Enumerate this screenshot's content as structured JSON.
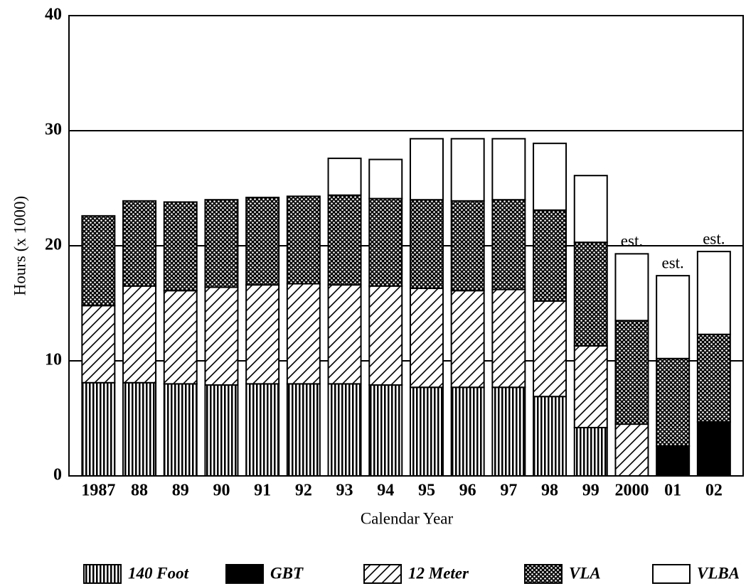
{
  "chart_data": {
    "type": "stacked-bar",
    "ylabel": "Hours (x 1000)",
    "xlabel": "Calendar Year",
    "categories": [
      "1987",
      "88",
      "89",
      "90",
      "91",
      "92",
      "93",
      "94",
      "95",
      "96",
      "97",
      "98",
      "99",
      "2000",
      "01",
      "02"
    ],
    "series": [
      {
        "name": "140 Foot",
        "color": "#000",
        "pattern": "vertical",
        "values": [
          8.1,
          8.1,
          8.0,
          7.9,
          8.0,
          8.0,
          8.0,
          7.9,
          7.7,
          7.7,
          7.7,
          6.9,
          4.2,
          0,
          0,
          0
        ]
      },
      {
        "name": "GBT",
        "color": "#000",
        "pattern": "solid",
        "values": [
          0,
          0,
          0,
          0,
          0,
          0,
          0,
          0,
          0,
          0,
          0,
          0,
          0,
          0,
          2.6,
          4.7
        ]
      },
      {
        "name": "12 Meter",
        "color": "#000",
        "pattern": "diagonal",
        "values": [
          6.7,
          8.4,
          8.1,
          8.5,
          8.6,
          8.7,
          8.6,
          8.6,
          8.6,
          8.4,
          8.5,
          8.3,
          7.1,
          4.5,
          0,
          0
        ]
      },
      {
        "name": "VLA",
        "color": "#000",
        "pattern": "dots",
        "values": [
          7.8,
          7.4,
          7.7,
          7.6,
          7.6,
          7.6,
          7.8,
          7.6,
          7.7,
          7.8,
          7.8,
          7.9,
          9.0,
          9.0,
          7.6,
          7.6
        ]
      },
      {
        "name": "VLBA",
        "color": "#000",
        "pattern": "none",
        "values": [
          0,
          0,
          0,
          0,
          0,
          0,
          3.2,
          3.4,
          5.3,
          5.4,
          5.3,
          5.8,
          5.8,
          5.8,
          7.2,
          7.2
        ]
      }
    ],
    "annotations": [
      {
        "text": "est.",
        "category": "2000"
      },
      {
        "text": "est.",
        "category": "01"
      },
      {
        "text": "est.",
        "category": "02"
      }
    ],
    "ylim": [
      0,
      40
    ],
    "yticks": [
      0,
      10,
      20,
      30,
      40
    ],
    "grid": true
  }
}
